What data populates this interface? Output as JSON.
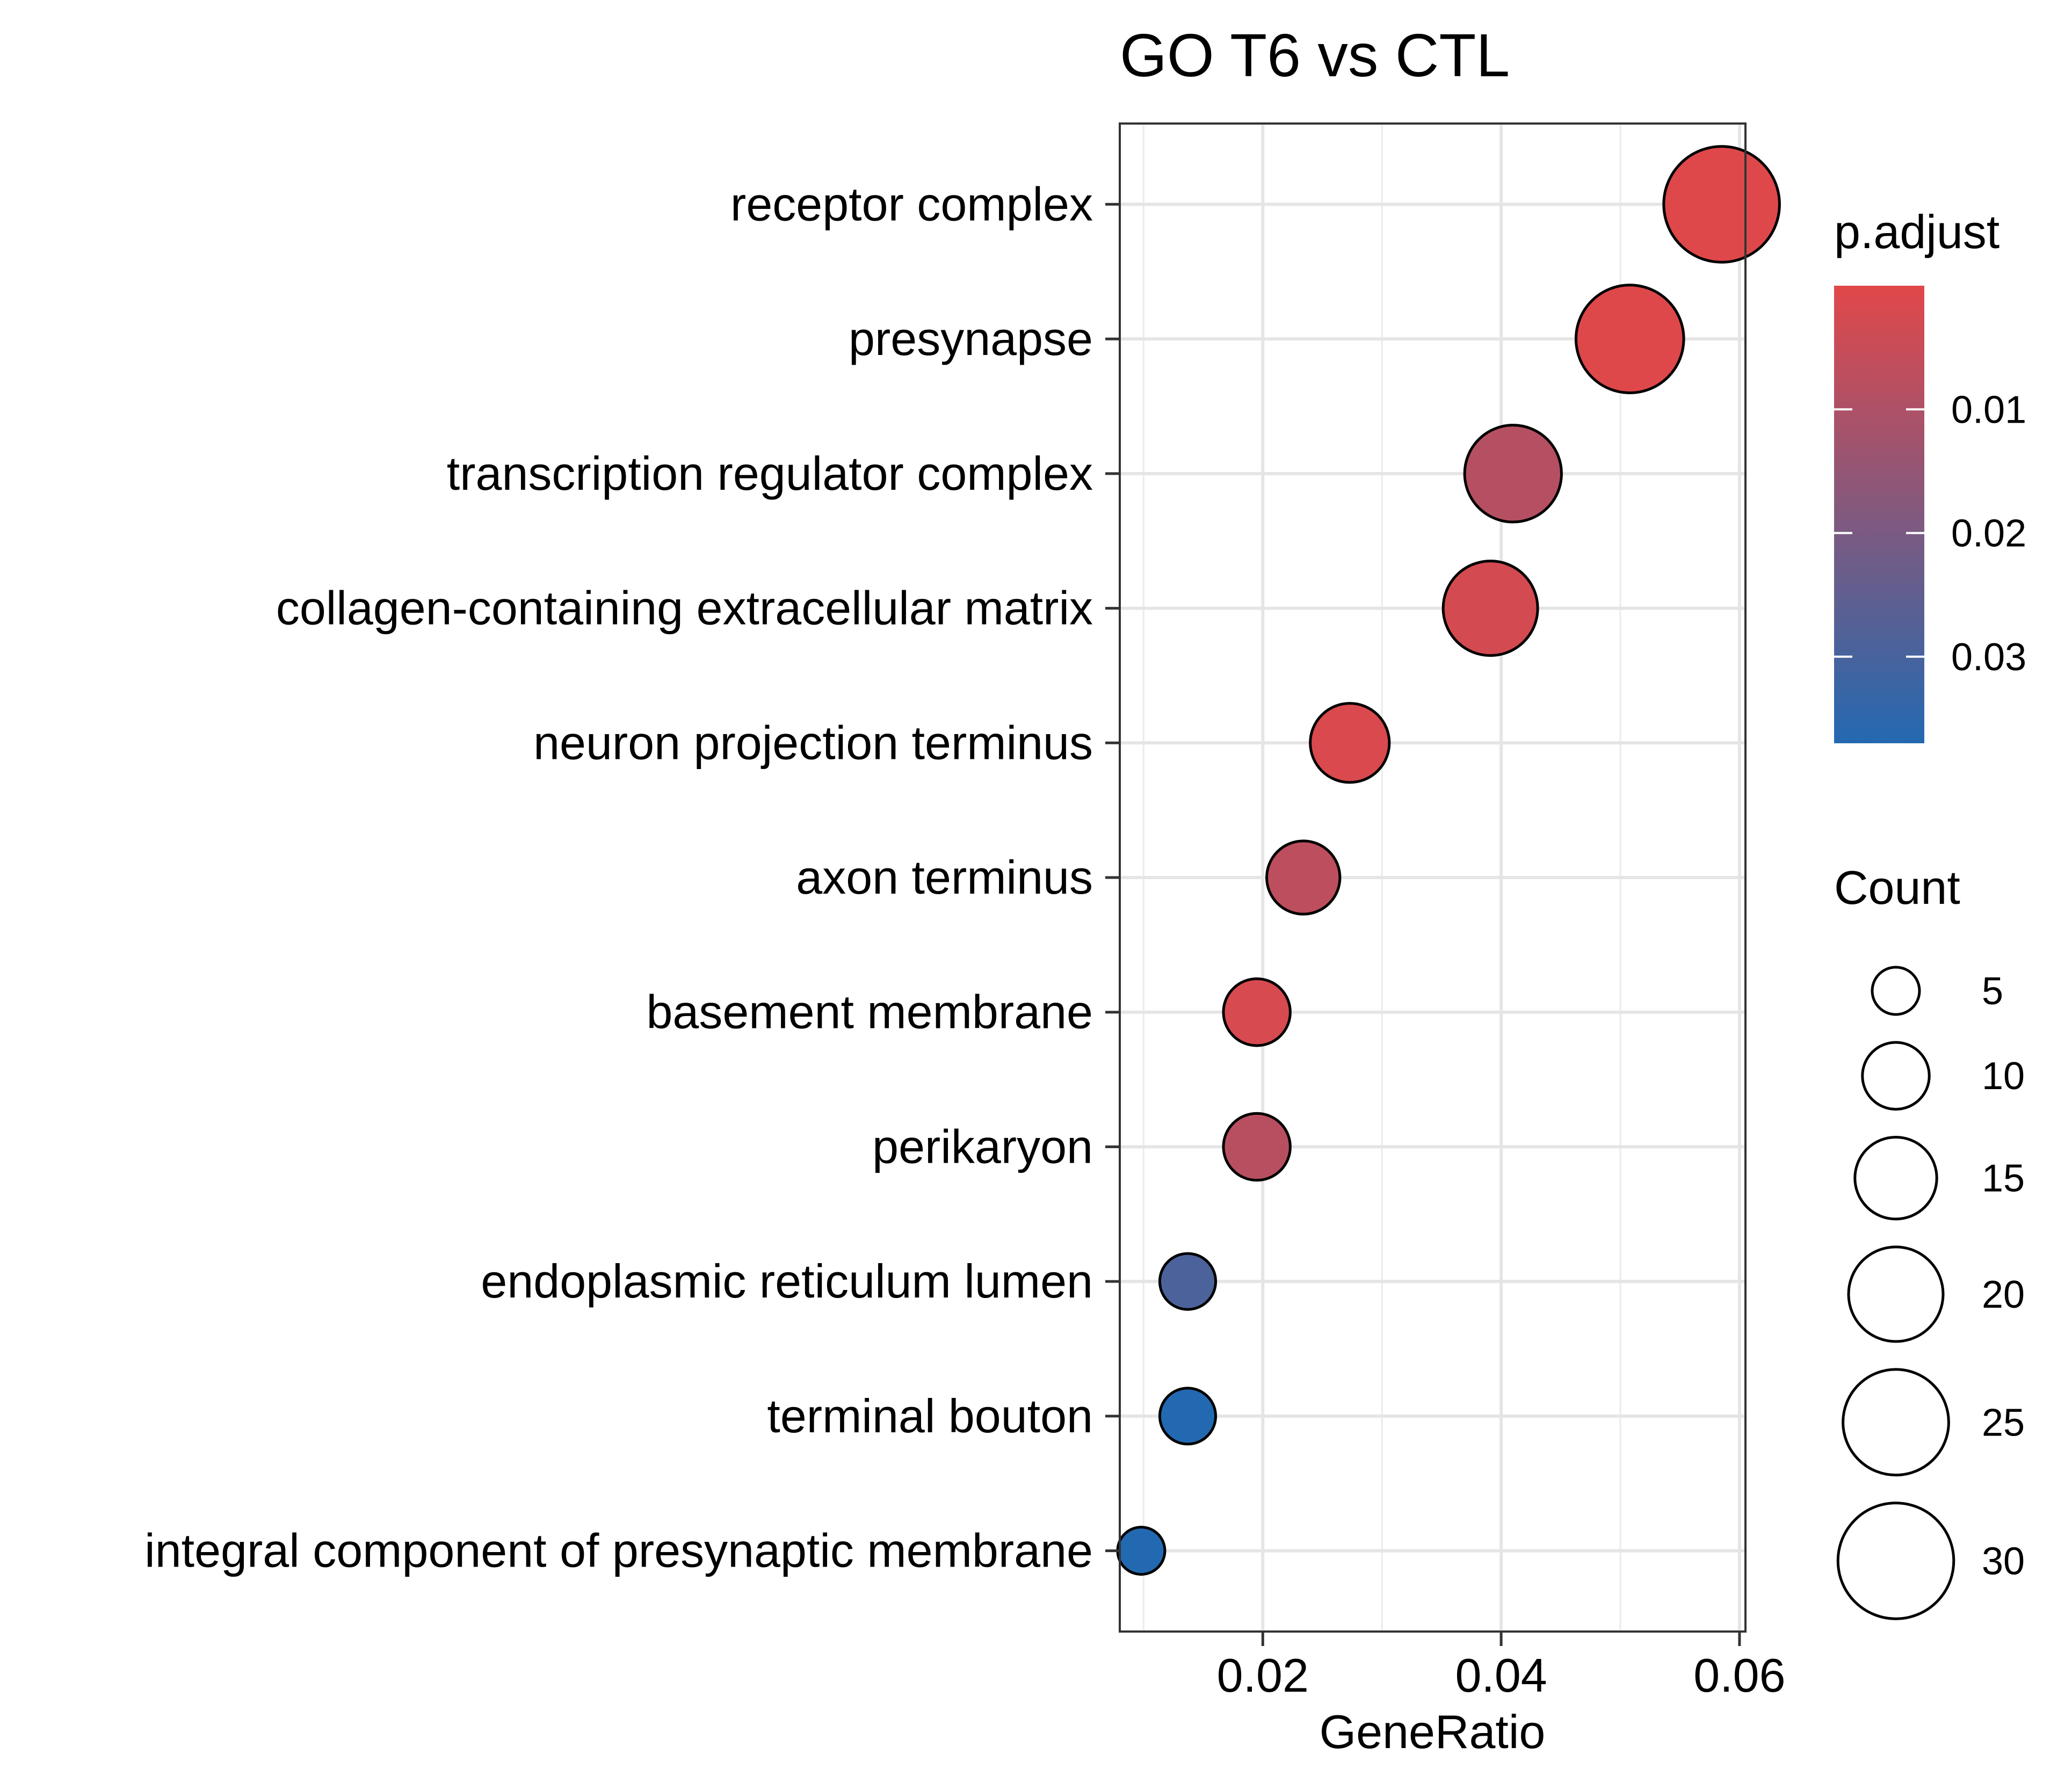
{
  "chart_data": {
    "type": "scatter",
    "title": "GO T6 vs CTL",
    "xlabel": "GeneRatio",
    "ylabel": "",
    "xlim": [
      0.008,
      0.0605
    ],
    "xticks": [
      {
        "value": 0.02,
        "label": "0.02"
      },
      {
        "value": 0.04,
        "label": "0.04"
      },
      {
        "value": 0.06,
        "label": "0.06"
      }
    ],
    "grid": true,
    "categories": [
      "receptor complex",
      "presynapse",
      "transcription regulator complex",
      "collagen-containing extracellular matrix",
      "neuron projection terminus",
      "axon terminus",
      "basement membrane",
      "perikaryon",
      "endoplasmic reticulum lumen",
      "terminal bouton",
      "integral component of presynaptic membrane"
    ],
    "points": [
      {
        "term": "receptor complex",
        "gene_ratio": 0.0585,
        "count": 30,
        "p_adjust": 0.0005
      },
      {
        "term": "presynapse",
        "gene_ratio": 0.0508,
        "count": 26,
        "p_adjust": 0.0005
      },
      {
        "term": "transcription regulator complex",
        "gene_ratio": 0.041,
        "count": 21,
        "p_adjust": 0.0085
      },
      {
        "term": "collagen-containing extracellular matrix",
        "gene_ratio": 0.0391,
        "count": 20,
        "p_adjust": 0.0025
      },
      {
        "term": "neuron projection terminus",
        "gene_ratio": 0.0273,
        "count": 14,
        "p_adjust": 0.0015
      },
      {
        "term": "axon terminus",
        "gene_ratio": 0.0234,
        "count": 12,
        "p_adjust": 0.007
      },
      {
        "term": "basement membrane",
        "gene_ratio": 0.0195,
        "count": 10,
        "p_adjust": 0.002
      },
      {
        "term": "perikaryon",
        "gene_ratio": 0.0195,
        "count": 10,
        "p_adjust": 0.008
      },
      {
        "term": "endoplasmic reticulum lumen",
        "gene_ratio": 0.0137,
        "count": 7,
        "p_adjust": 0.029
      },
      {
        "term": "terminal bouton",
        "gene_ratio": 0.0137,
        "count": 7,
        "p_adjust": 0.037
      },
      {
        "term": "integral component of presynaptic membrane",
        "gene_ratio": 0.0098,
        "count": 5,
        "p_adjust": 0.037
      }
    ],
    "color_legend": {
      "title": "p.adjust",
      "low_color": "#E1484A",
      "high_color": "#2369B1",
      "range": [
        0.0,
        0.037
      ],
      "ticks": [
        {
          "value": 0.01,
          "label": "0.01"
        },
        {
          "value": 0.02,
          "label": "0.02"
        },
        {
          "value": 0.03,
          "label": "0.03"
        }
      ]
    },
    "size_legend": {
      "title": "Count",
      "entries": [
        {
          "value": 5,
          "label": "5"
        },
        {
          "value": 10,
          "label": "10"
        },
        {
          "value": 15,
          "label": "15"
        },
        {
          "value": 20,
          "label": "20"
        },
        {
          "value": 25,
          "label": "25"
        },
        {
          "value": 30,
          "label": "30"
        }
      ]
    },
    "legend_position": "right"
  }
}
